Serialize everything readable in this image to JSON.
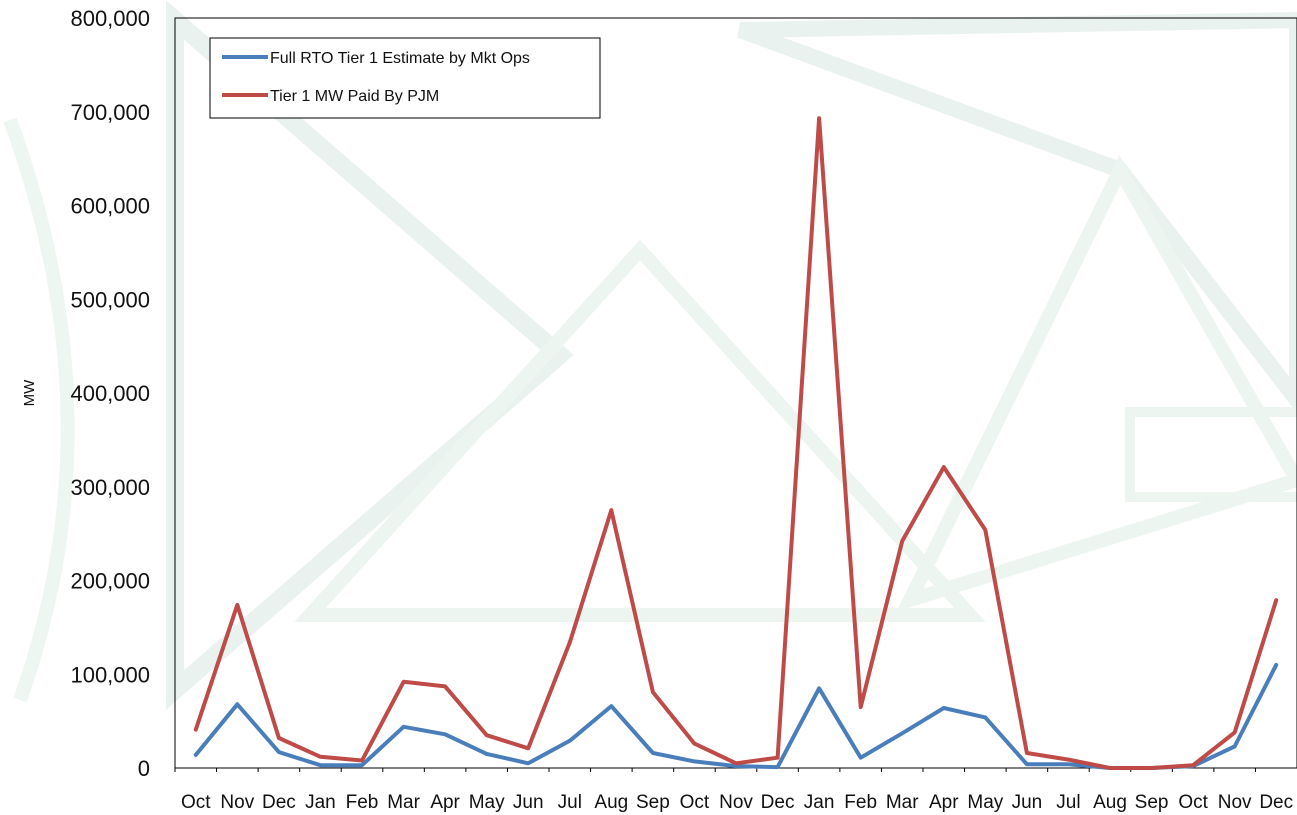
{
  "chart_data": {
    "type": "line",
    "title": "",
    "xlabel": "",
    "ylabel": "MW",
    "ylim": [
      0,
      800000
    ],
    "yticks": [
      "0",
      "100,000",
      "200,000",
      "300,000",
      "400,000",
      "500,000",
      "600,000",
      "700,000",
      "800,000"
    ],
    "grid": false,
    "legend_position": "top-left",
    "categories": [
      "Oct",
      "Nov",
      "Dec",
      "Jan",
      "Feb",
      "Mar",
      "Apr",
      "May",
      "Jun",
      "Jul",
      "Aug",
      "Sep",
      "Oct",
      "Nov",
      "Dec",
      "Jan",
      "Feb",
      "Mar",
      "Apr",
      "May",
      "Jun",
      "Jul",
      "Aug",
      "Sep",
      "Oct",
      "Nov",
      "Dec"
    ],
    "series": [
      {
        "name": "Full RTO Tier 1 Estimate by Mkt Ops",
        "color": "#4a7ebb",
        "values": [
          14000,
          68000,
          17000,
          3000,
          3000,
          44000,
          36000,
          15000,
          5000,
          29000,
          66000,
          16000,
          7000,
          2000,
          1000,
          85000,
          11000,
          37000,
          64000,
          54000,
          4000,
          4000,
          0,
          0,
          2000,
          23000,
          110000
        ]
      },
      {
        "name": "Tier 1 MW Paid By PJM",
        "color": "#be4b48",
        "values": [
          41000,
          174000,
          32000,
          12000,
          8000,
          92000,
          87000,
          35000,
          21000,
          134000,
          275000,
          81000,
          26000,
          5000,
          11000,
          693000,
          65000,
          242000,
          321000,
          254000,
          16000,
          9000,
          0,
          0,
          3000,
          38000,
          179000
        ]
      }
    ]
  }
}
